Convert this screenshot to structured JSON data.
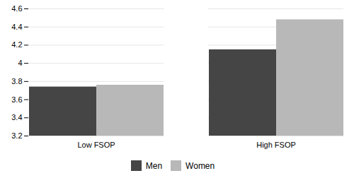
{
  "chart_data": {
    "type": "bar",
    "categories": [
      "Low FSOP",
      "High FSOP"
    ],
    "series": [
      {
        "name": "Men",
        "color": "#454545",
        "values": [
          3.74,
          4.15
        ]
      },
      {
        "name": "Women",
        "color": "#b8b8b8",
        "values": [
          3.76,
          4.48
        ]
      }
    ],
    "ylim": [
      3.2,
      4.6
    ],
    "yticks": [
      3.2,
      3.4,
      3.6,
      3.8,
      4,
      4.2,
      4.4,
      4.6
    ],
    "grid": true,
    "legend": "bottom"
  }
}
